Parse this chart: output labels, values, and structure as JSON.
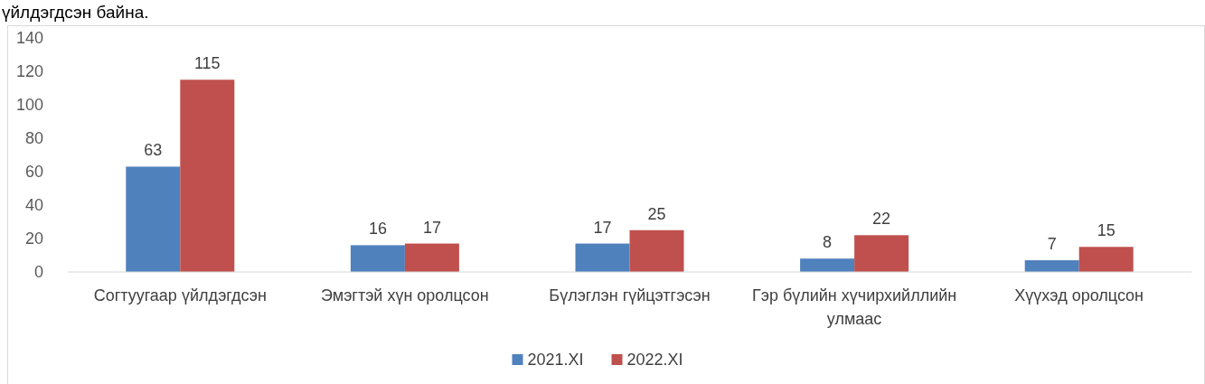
{
  "chart_data": {
    "type": "bar",
    "annotations": [
      "үйлдэгдсэн байна."
    ],
    "categories": [
      "Согтуугаар үйлдэгдсэн",
      "Эмэгтэй хүн оролцсон",
      "Бүлэглэн гүйцэтгэсэн",
      "Гэр бүлийн хүчирхийллийн улмаас",
      "Хүүхэд оролцсон"
    ],
    "series": [
      {
        "name": "2021.XI",
        "color": "#4f81bd",
        "values": [
          63,
          16,
          17,
          8,
          7
        ]
      },
      {
        "name": "2022.XI",
        "color": "#c0504d",
        "values": [
          115,
          17,
          25,
          22,
          15
        ]
      }
    ],
    "ylim": [
      0,
      140
    ],
    "yticks": [
      0,
      20,
      40,
      60,
      80,
      100,
      120,
      140
    ],
    "data_labels": true,
    "legend": "bottom"
  }
}
